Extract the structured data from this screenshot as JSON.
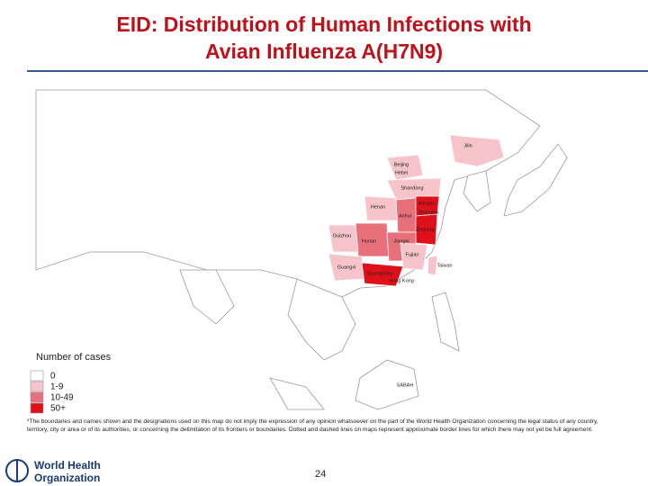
{
  "header": {
    "title_lines": [
      "EID: Distribution of Human Infections with",
      "Avian Influenza A(H7N9)"
    ]
  },
  "map": {
    "labels": [
      "Jilin",
      "Beijing",
      "Hebei",
      "Shandong",
      "Henan",
      "Jiangsu",
      "Anhui",
      "Shanghai",
      "Zhejiang",
      "Hunan",
      "Jiangxi",
      "Fujian",
      "Guizhou",
      "Guangxi",
      "Guangdong",
      "Hong Kong",
      "Taiwan",
      "SABAH"
    ],
    "legend": {
      "title": "Number of cases",
      "items": [
        {
          "label": "0",
          "color": "#ffffff"
        },
        {
          "label": "1-9",
          "color": "#f6c4ca"
        },
        {
          "label": "10-49",
          "color": "#e8707a"
        },
        {
          "label": "50+",
          "color": "#e0101a"
        }
      ]
    }
  },
  "footer": {
    "disclaimer": "*The boundaries and names shown and the designations used on this map do not imply the expression of any opinion whatsoever on the part of the World Health Organization concerning the legal status of any country, territory, city or area or of its authorities, or concerning the delimitation of its frontiers or boundaries. Dotted and dashed lines on maps represent approximate border lines for which there may not yet be full agreement.",
    "page": "24",
    "logo_lines": [
      "World Health",
      "Organization"
    ]
  }
}
